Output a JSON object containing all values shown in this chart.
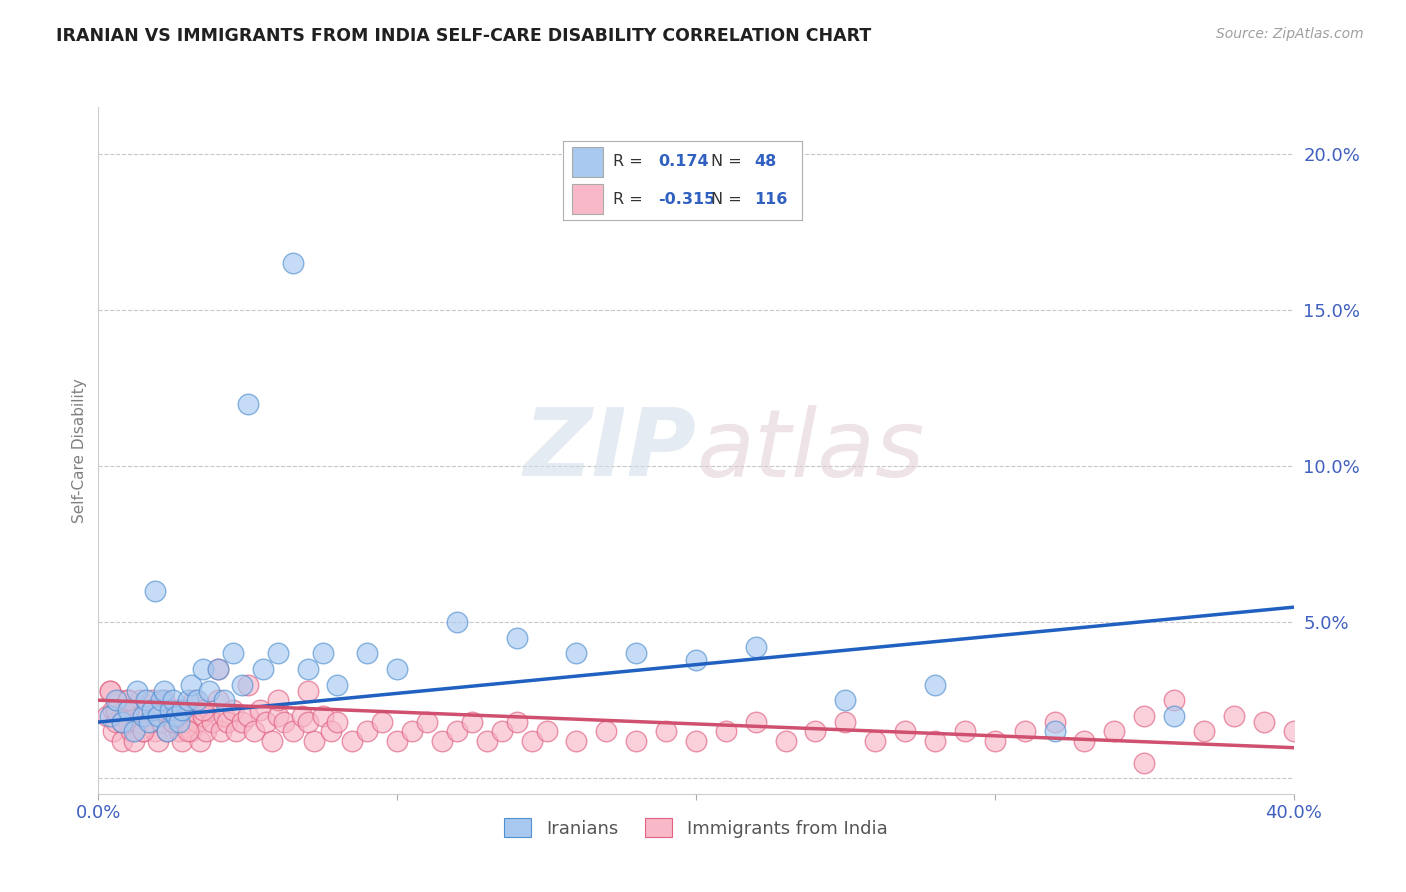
{
  "title": "IRANIAN VS IMMIGRANTS FROM INDIA SELF-CARE DISABILITY CORRELATION CHART",
  "source": "Source: ZipAtlas.com",
  "ylabel": "Self-Care Disability",
  "xlim": [
    0.0,
    0.4
  ],
  "ylim": [
    -0.005,
    0.215
  ],
  "background_color": "#ffffff",
  "grid_color": "#c8c8c8",
  "watermark_text": "ZIPatlas",
  "watermark_color": "#e0e8f0",
  "iranians_color": "#a8c8f0",
  "iranians_edge_color": "#5090d0",
  "india_color": "#f8b8c8",
  "india_edge_color": "#e06080",
  "iranians_line_color": "#2060c0",
  "india_line_color": "#d05070",
  "tick_color": "#4060c0",
  "label_color": "#808080",
  "source_color": "#a0a0a0",
  "title_color": "#202020",
  "R_iranians": 0.174,
  "N_iranians": 48,
  "R_india": -0.315,
  "N_india": 116,
  "iranians_intercept": 0.018,
  "iranians_slope": 0.092,
  "india_intercept": 0.025,
  "india_slope": -0.038,
  "iranians_x": [
    0.004,
    0.006,
    0.008,
    0.01,
    0.012,
    0.013,
    0.015,
    0.016,
    0.017,
    0.018,
    0.019,
    0.02,
    0.021,
    0.022,
    0.023,
    0.024,
    0.025,
    0.026,
    0.027,
    0.028,
    0.03,
    0.031,
    0.033,
    0.035,
    0.037,
    0.04,
    0.042,
    0.045,
    0.048,
    0.05,
    0.055,
    0.06,
    0.065,
    0.07,
    0.075,
    0.08,
    0.09,
    0.1,
    0.12,
    0.14,
    0.16,
    0.18,
    0.2,
    0.22,
    0.25,
    0.28,
    0.32,
    0.36
  ],
  "iranians_y": [
    0.02,
    0.025,
    0.018,
    0.022,
    0.015,
    0.028,
    0.02,
    0.025,
    0.018,
    0.022,
    0.06,
    0.02,
    0.025,
    0.028,
    0.015,
    0.022,
    0.025,
    0.02,
    0.018,
    0.022,
    0.025,
    0.03,
    0.025,
    0.035,
    0.028,
    0.035,
    0.025,
    0.04,
    0.03,
    0.12,
    0.035,
    0.04,
    0.165,
    0.035,
    0.04,
    0.03,
    0.04,
    0.035,
    0.05,
    0.045,
    0.04,
    0.04,
    0.038,
    0.042,
    0.025,
    0.03,
    0.015,
    0.02
  ],
  "india_x": [
    0.003,
    0.004,
    0.005,
    0.005,
    0.006,
    0.007,
    0.008,
    0.008,
    0.009,
    0.01,
    0.01,
    0.011,
    0.012,
    0.012,
    0.013,
    0.014,
    0.015,
    0.015,
    0.016,
    0.017,
    0.018,
    0.019,
    0.02,
    0.02,
    0.021,
    0.022,
    0.023,
    0.024,
    0.025,
    0.026,
    0.027,
    0.028,
    0.029,
    0.03,
    0.031,
    0.032,
    0.033,
    0.034,
    0.035,
    0.036,
    0.037,
    0.038,
    0.04,
    0.041,
    0.042,
    0.043,
    0.045,
    0.046,
    0.048,
    0.05,
    0.052,
    0.054,
    0.056,
    0.058,
    0.06,
    0.062,
    0.065,
    0.068,
    0.07,
    0.072,
    0.075,
    0.078,
    0.08,
    0.085,
    0.09,
    0.095,
    0.1,
    0.105,
    0.11,
    0.115,
    0.12,
    0.125,
    0.13,
    0.135,
    0.14,
    0.145,
    0.15,
    0.16,
    0.17,
    0.18,
    0.19,
    0.2,
    0.21,
    0.22,
    0.23,
    0.24,
    0.25,
    0.26,
    0.27,
    0.28,
    0.29,
    0.3,
    0.31,
    0.32,
    0.33,
    0.34,
    0.35,
    0.36,
    0.37,
    0.38,
    0.39,
    0.4,
    0.004,
    0.006,
    0.008,
    0.01,
    0.015,
    0.02,
    0.025,
    0.03,
    0.035,
    0.04,
    0.05,
    0.06,
    0.07,
    0.35
  ],
  "india_y": [
    0.02,
    0.028,
    0.022,
    0.015,
    0.018,
    0.025,
    0.02,
    0.012,
    0.022,
    0.018,
    0.025,
    0.015,
    0.022,
    0.012,
    0.018,
    0.025,
    0.02,
    0.015,
    0.022,
    0.018,
    0.025,
    0.015,
    0.022,
    0.012,
    0.018,
    0.025,
    0.015,
    0.02,
    0.018,
    0.022,
    0.015,
    0.012,
    0.018,
    0.022,
    0.015,
    0.025,
    0.018,
    0.012,
    0.02,
    0.015,
    0.022,
    0.018,
    0.025,
    0.015,
    0.02,
    0.018,
    0.022,
    0.015,
    0.018,
    0.02,
    0.015,
    0.022,
    0.018,
    0.012,
    0.02,
    0.018,
    0.015,
    0.02,
    0.018,
    0.012,
    0.02,
    0.015,
    0.018,
    0.012,
    0.015,
    0.018,
    0.012,
    0.015,
    0.018,
    0.012,
    0.015,
    0.018,
    0.012,
    0.015,
    0.018,
    0.012,
    0.015,
    0.012,
    0.015,
    0.012,
    0.015,
    0.012,
    0.015,
    0.018,
    0.012,
    0.015,
    0.018,
    0.012,
    0.015,
    0.012,
    0.015,
    0.012,
    0.015,
    0.018,
    0.012,
    0.015,
    0.02,
    0.025,
    0.015,
    0.02,
    0.018,
    0.015,
    0.028,
    0.022,
    0.018,
    0.025,
    0.015,
    0.022,
    0.018,
    0.015,
    0.022,
    0.035,
    0.03,
    0.025,
    0.028,
    0.005
  ]
}
